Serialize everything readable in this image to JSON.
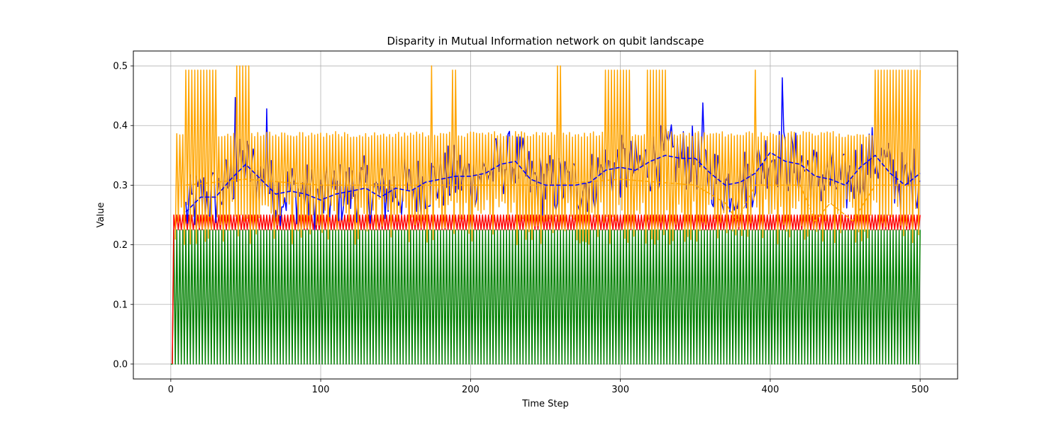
{
  "chart_data": {
    "type": "line",
    "title": "Disparity in Mutual Information network on qubit landscape",
    "xlabel": "Time Step",
    "ylabel": "Value",
    "xlim": [
      -25,
      525
    ],
    "ylim": [
      -0.025,
      0.525
    ],
    "xticks": [
      0,
      100,
      200,
      300,
      400,
      500
    ],
    "yticks": [
      0.0,
      0.1,
      0.2,
      0.3,
      0.4,
      0.5
    ],
    "xtick_labels": [
      "0",
      "100",
      "200",
      "300",
      "400",
      "500"
    ],
    "ytick_labels": [
      "0.0",
      "0.1",
      "0.2",
      "0.3",
      "0.4",
      "0.5"
    ],
    "grid": true,
    "legend": "none",
    "x_range": [
      0,
      500
    ],
    "series": [
      {
        "color": "#008000",
        "style": "solid",
        "description_values": "oscillates every step between 0.0 and about 0.225 from step 2 to 500; starts at 0.0",
        "levels": [
          0.0,
          0.225
        ]
      },
      {
        "color": "#ff0000",
        "style": "solid",
        "description_values": "rises from 0.0 at step 1 and then oscillates between about 0.225 and 0.25 until step 500",
        "levels": [
          0.225,
          0.25
        ]
      },
      {
        "color": "#ffa500",
        "style": "solid",
        "description_values": "oscillates roughly between 0.20 and 0.39, with spike clusters near 0.49-0.50",
        "levels": [
          0.2,
          0.39
        ],
        "spikes": [
          {
            "x_start": 10,
            "x_end": 30,
            "peak": 0.493
          },
          {
            "x_start": 44,
            "x_end": 53,
            "peak": 0.5
          },
          {
            "x_start": 174,
            "x_end": 175,
            "peak": 0.5
          },
          {
            "x_start": 188,
            "x_end": 190,
            "peak": 0.493
          },
          {
            "x_start": 257,
            "x_end": 260,
            "peak": 0.5
          },
          {
            "x_start": 290,
            "x_end": 306,
            "peak": 0.493
          },
          {
            "x_start": 318,
            "x_end": 330,
            "peak": 0.493
          },
          {
            "x_start": 390,
            "x_end": 391,
            "peak": 0.493
          },
          {
            "x_start": 470,
            "x_end": 500,
            "peak": 0.493
          }
        ]
      },
      {
        "color": "#0000ff",
        "style": "solid",
        "description_values": "noisy line mostly between 0.25 and 0.40, with peaks near 0.45 at step 43 and 0.48 at step 410",
        "range": [
          0.21,
          0.48
        ],
        "peaks": [
          {
            "x": 43,
            "y": 0.447
          },
          {
            "x": 64,
            "y": 0.428
          },
          {
            "x": 408,
            "y": 0.482
          },
          {
            "x": 355,
            "y": 0.438
          }
        ]
      },
      {
        "color": "#0000ff",
        "style": "dashed",
        "description_values": "rolling mean of the blue line, from about 0.25 at step 10 to about 0.33 at step 500",
        "points": [
          [
            10,
            0.255
          ],
          [
            20,
            0.28
          ],
          [
            30,
            0.28
          ],
          [
            40,
            0.31
          ],
          [
            50,
            0.335
          ],
          [
            60,
            0.31
          ],
          [
            70,
            0.285
          ],
          [
            80,
            0.29
          ],
          [
            90,
            0.285
          ],
          [
            100,
            0.275
          ],
          [
            110,
            0.285
          ],
          [
            120,
            0.29
          ],
          [
            130,
            0.295
          ],
          [
            140,
            0.28
          ],
          [
            150,
            0.295
          ],
          [
            160,
            0.29
          ],
          [
            170,
            0.305
          ],
          [
            180,
            0.31
          ],
          [
            190,
            0.315
          ],
          [
            200,
            0.315
          ],
          [
            210,
            0.32
          ],
          [
            220,
            0.335
          ],
          [
            230,
            0.34
          ],
          [
            240,
            0.31
          ],
          [
            250,
            0.3
          ],
          [
            260,
            0.3
          ],
          [
            270,
            0.3
          ],
          [
            280,
            0.305
          ],
          [
            290,
            0.325
          ],
          [
            300,
            0.33
          ],
          [
            310,
            0.325
          ],
          [
            320,
            0.34
          ],
          [
            330,
            0.35
          ],
          [
            340,
            0.345
          ],
          [
            350,
            0.345
          ],
          [
            360,
            0.32
          ],
          [
            370,
            0.3
          ],
          [
            380,
            0.305
          ],
          [
            390,
            0.32
          ],
          [
            400,
            0.355
          ],
          [
            410,
            0.34
          ],
          [
            420,
            0.335
          ],
          [
            430,
            0.315
          ],
          [
            440,
            0.31
          ],
          [
            450,
            0.3
          ],
          [
            460,
            0.33
          ],
          [
            470,
            0.35
          ],
          [
            480,
            0.32
          ],
          [
            490,
            0.3
          ],
          [
            500,
            0.32
          ]
        ]
      },
      {
        "color": "#ffa500",
        "style": "dashed",
        "description_values": "rolling mean of the orange line, about 0.29-0.31 most of the time, dipping to about 0.24 near steps 375 and 455",
        "points": [
          [
            10,
            0.3
          ],
          [
            50,
            0.31
          ],
          [
            100,
            0.3
          ],
          [
            150,
            0.3
          ],
          [
            200,
            0.3
          ],
          [
            250,
            0.3
          ],
          [
            300,
            0.31
          ],
          [
            350,
            0.3
          ],
          [
            370,
            0.27
          ],
          [
            378,
            0.24
          ],
          [
            390,
            0.3
          ],
          [
            420,
            0.3
          ],
          [
            430,
            0.24
          ],
          [
            440,
            0.27
          ],
          [
            455,
            0.24
          ],
          [
            470,
            0.3
          ],
          [
            500,
            0.3
          ]
        ]
      }
    ]
  }
}
